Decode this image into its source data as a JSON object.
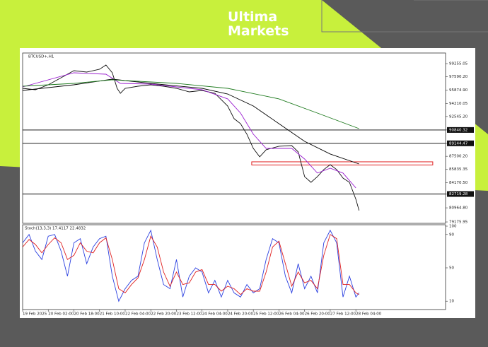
{
  "brand": {
    "line1": "Ultima",
    "line2": "Markets"
  },
  "chart_data": [
    {
      "type": "line",
      "title": "BTCUSD+,H1",
      "xlim": [
        0,
        264
      ],
      "ylim": [
        79000,
        100600
      ],
      "yticks": [
        99255.05,
        {
          "value": 97590.2,
          "label": "97590.20"
        },
        {
          "value": 95874.9,
          "label": "95874.90"
        },
        94210.05,
        {
          "value": 92545.2,
          "label": "92545.20"
        },
        90840.32,
        89144.47,
        {
          "value": 87500.2,
          "label": "87500.20"
        },
        85835.35,
        {
          "value": 84170.5,
          "label": "84170.50"
        },
        82719.28,
        {
          "value": 80964.8,
          "label": "80964.80"
        },
        79175.95
      ],
      "levels": [
        90840.32,
        89144.47,
        82719.28
      ],
      "zone": {
        "x": [
          143,
          256
        ],
        "y": [
          86400,
          86800
        ],
        "color": "#e02020"
      },
      "series": [
        {
          "color": "#111111",
          "x": [
            0,
            8,
            16,
            24,
            32,
            40,
            48,
            52,
            56,
            59,
            61,
            64,
            72,
            80,
            88,
            96,
            104,
            112,
            120,
            128,
            132,
            136,
            140,
            144,
            148,
            152,
            160,
            168,
            172,
            176,
            180,
            184,
            188,
            192,
            196,
            200,
            204,
            208,
            210
          ],
          "values": [
            96120,
            95940,
            96570,
            97460,
            98360,
            98180,
            98540,
            99080,
            98090,
            96120,
            95490,
            96120,
            96390,
            96570,
            96390,
            96120,
            95670,
            95850,
            95490,
            93880,
            92270,
            91640,
            90300,
            88500,
            87430,
            88330,
            88780,
            88860,
            88060,
            84920,
            84200,
            84920,
            85820,
            86440,
            85820,
            84740,
            84200,
            82050,
            80620
          ]
        },
        {
          "color": "#9b1fd0",
          "x": [
            0,
            32,
            52,
            61,
            80,
            112,
            128,
            136,
            144,
            152,
            168,
            176,
            184,
            192,
            200,
            208
          ],
          "values": [
            96300,
            98090,
            97910,
            96750,
            96660,
            95940,
            94780,
            92980,
            90300,
            88500,
            88500,
            87160,
            85370,
            85990,
            85370,
            83490
          ]
        },
        {
          "color": "#000000",
          "x": [
            0,
            32,
            56,
            80,
            112,
            128,
            144,
            160,
            176,
            192,
            210
          ],
          "values": [
            95850,
            96570,
            97280,
            96750,
            96120,
            95400,
            93880,
            91640,
            89400,
            87790,
            86530
          ]
        },
        {
          "color": "#1e7a1e",
          "x": [
            0,
            32,
            56,
            96,
            128,
            160,
            184,
            210
          ],
          "values": [
            96390,
            96750,
            97200,
            96750,
            96120,
            94780,
            92980,
            91010
          ]
        }
      ]
    },
    {
      "type": "line",
      "title": "Stoch(13,3,3) 17.4117 22.4832",
      "xlim": [
        0,
        264
      ],
      "ylim": [
        0,
        100
      ],
      "yticks": [
        100,
        90,
        50,
        10
      ],
      "xticks": [
        {
          "value": 0,
          "label": "19 Feb 2025"
        },
        {
          "value": 16,
          "label": "20 Feb 02:00"
        },
        {
          "value": 32,
          "label": "20 Feb 18:00"
        },
        {
          "value": 48,
          "label": "21 Feb 10:00"
        },
        {
          "value": 64,
          "label": "22 Feb 04:00"
        },
        {
          "value": 80,
          "label": "22 Feb 20:00"
        },
        {
          "value": 96,
          "label": "23 Feb 12:00"
        },
        {
          "value": 112,
          "label": "24 Feb 04:00"
        },
        {
          "value": 128,
          "label": "24 Feb 20:00"
        },
        {
          "value": 144,
          "label": "25 Feb 12:00"
        },
        {
          "value": 160,
          "label": "26 Feb 04:00"
        },
        {
          "value": 176,
          "label": "26 Feb 20:00"
        },
        {
          "value": 192,
          "label": "27 Feb 12:00"
        },
        {
          "value": 208,
          "label": "28 Feb 04:00"
        }
      ],
      "series": [
        {
          "color": "#2a3fe0",
          "x": [
            0,
            4,
            8,
            12,
            16,
            20,
            24,
            28,
            32,
            36,
            40,
            44,
            48,
            52,
            56,
            60,
            64,
            68,
            72,
            76,
            80,
            84,
            88,
            92,
            96,
            100,
            104,
            108,
            112,
            116,
            120,
            124,
            128,
            132,
            136,
            140,
            144,
            148,
            152,
            156,
            160,
            164,
            168,
            172,
            176,
            180,
            184,
            188,
            192,
            196,
            200,
            204,
            208,
            210
          ],
          "values": [
            80,
            90,
            70,
            60,
            88,
            90,
            70,
            40,
            80,
            85,
            55,
            75,
            85,
            88,
            40,
            10,
            25,
            35,
            40,
            80,
            95,
            60,
            30,
            25,
            60,
            15,
            40,
            50,
            45,
            20,
            35,
            15,
            35,
            20,
            15,
            30,
            20,
            25,
            60,
            85,
            80,
            40,
            20,
            55,
            25,
            40,
            20,
            80,
            95,
            80,
            15,
            40,
            15,
            20
          ]
        },
        {
          "color": "#e02020",
          "x": [
            0,
            4,
            8,
            12,
            16,
            20,
            24,
            28,
            32,
            36,
            40,
            44,
            48,
            52,
            56,
            60,
            64,
            68,
            72,
            76,
            80,
            84,
            88,
            92,
            96,
            100,
            104,
            108,
            112,
            116,
            120,
            124,
            128,
            132,
            136,
            140,
            144,
            148,
            152,
            156,
            160,
            164,
            168,
            172,
            176,
            180,
            184,
            188,
            192,
            196,
            200,
            204,
            208,
            210
          ],
          "values": [
            75,
            84,
            78,
            68,
            78,
            86,
            80,
            60,
            65,
            80,
            70,
            68,
            80,
            86,
            60,
            25,
            20,
            30,
            38,
            60,
            88,
            75,
            45,
            28,
            45,
            30,
            32,
            45,
            48,
            30,
            30,
            22,
            28,
            25,
            18,
            25,
            22,
            22,
            45,
            75,
            82,
            55,
            28,
            45,
            32,
            35,
            25,
            65,
            90,
            85,
            30,
            30,
            20,
            18
          ]
        }
      ]
    }
  ]
}
